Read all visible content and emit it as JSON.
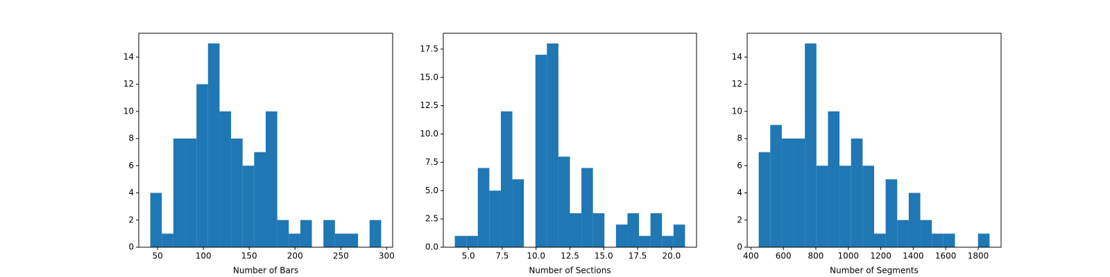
{
  "chart_data": [
    {
      "type": "histogram",
      "xlabel": "Number of Bars",
      "color": "#1f77b4",
      "bins": [
        42,
        54.6,
        67.2,
        79.8,
        92.4,
        105,
        117.6,
        130.2,
        142.8,
        155.4,
        168,
        180.6,
        193.2,
        205.8,
        218.4,
        231,
        243.6,
        256.2,
        268.8,
        281.4,
        294
      ],
      "values": [
        4,
        1,
        8,
        8,
        12,
        15,
        10,
        8,
        6,
        7,
        10,
        2,
        1,
        2,
        0,
        2,
        1,
        1,
        0,
        2
      ],
      "xlim": [
        29.4,
        306.6
      ],
      "ylim": [
        0,
        15.75
      ],
      "xticks": [
        50,
        100,
        150,
        200,
        250,
        300
      ],
      "yticks": [
        0,
        2,
        4,
        6,
        8,
        10,
        12,
        14
      ]
    },
    {
      "type": "histogram",
      "xlabel": "Number of Sections",
      "color": "#1f77b4",
      "bins": [
        4,
        4.85,
        5.7,
        6.55,
        7.4,
        8.25,
        9.1,
        9.95,
        10.8,
        11.65,
        12.5,
        13.35,
        14.2,
        15.05,
        15.9,
        16.75,
        17.6,
        18.45,
        19.3,
        20.15,
        21
      ],
      "values": [
        1,
        1,
        7,
        5,
        12,
        6,
        0,
        17,
        18,
        8,
        3,
        7,
        3,
        0,
        2,
        3,
        1,
        3,
        1,
        2
      ],
      "xlim": [
        3.15,
        21.85
      ],
      "ylim": [
        0,
        18.9
      ],
      "xticks": [
        {
          "value": 5,
          "label": "5.0"
        },
        7.5,
        {
          "value": 10,
          "label": "10.0"
        },
        12.5,
        {
          "value": 15,
          "label": "15.0"
        },
        17.5,
        {
          "value": 20,
          "label": "20.0"
        }
      ],
      "yticks": [
        {
          "value": 0,
          "label": "0.0"
        },
        2.5,
        {
          "value": 5,
          "label": "5.0"
        },
        7.5,
        {
          "value": 10,
          "label": "10.0"
        },
        12.5,
        {
          "value": 15,
          "label": "15.0"
        },
        17.5
      ]
    },
    {
      "type": "histogram",
      "xlabel": "Number of Segments",
      "color": "#1f77b4",
      "bins": [
        448,
        519.1,
        590.2,
        661.3,
        732.4,
        803.5,
        874.6,
        945.7,
        1016.8,
        1087.9,
        1159,
        1230.1,
        1301.2,
        1372.3,
        1443.4,
        1514.5,
        1585.6,
        1656.7,
        1727.8,
        1798.9,
        1870
      ],
      "values": [
        7,
        9,
        8,
        8,
        15,
        6,
        10,
        6,
        8,
        6,
        1,
        5,
        2,
        4,
        2,
        1,
        1,
        0,
        0,
        1
      ],
      "xlim": [
        376.9,
        1941.1
      ],
      "ylim": [
        0,
        15.75
      ],
      "xticks": [
        400,
        600,
        800,
        1000,
        1200,
        1400,
        1600,
        1800
      ],
      "yticks": [
        0,
        2,
        4,
        6,
        8,
        10,
        12,
        14
      ]
    }
  ]
}
